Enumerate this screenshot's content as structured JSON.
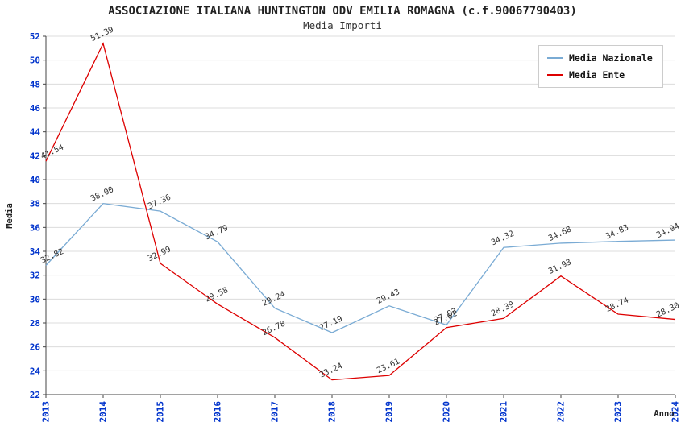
{
  "chart_data": {
    "type": "line",
    "title": "ASSOCIAZIONE ITALIANA HUNTINGTON ODV EMILIA ROMAGNA (c.f.90067790403)",
    "subtitle": "Media Importi",
    "xlabel": "Anno",
    "ylabel": "Media",
    "x": [
      "2013",
      "2014",
      "2015",
      "2016",
      "2017",
      "2018",
      "2019",
      "2020",
      "2021",
      "2022",
      "2023",
      "2024"
    ],
    "ylim": [
      22,
      52
    ],
    "ytick_step": 2,
    "grid": "horizontal",
    "legend_position": "top-right",
    "series": [
      {
        "name": "Media Nazionale",
        "color": "#7aabd4",
        "values": [
          32.82,
          38.0,
          37.36,
          34.79,
          29.24,
          27.19,
          29.43,
          27.83,
          34.32,
          34.68,
          34.83,
          34.94
        ]
      },
      {
        "name": "Media Ente",
        "color": "#dd0000",
        "values": [
          41.54,
          51.39,
          32.99,
          29.58,
          26.78,
          23.24,
          23.61,
          27.61,
          28.39,
          31.93,
          28.74,
          28.3
        ]
      }
    ]
  },
  "colors": {
    "tick_label": "#0033cc",
    "grid": "#dcdcdc",
    "axis": "#444444",
    "point_label": "#333333",
    "title": "#222222"
  }
}
